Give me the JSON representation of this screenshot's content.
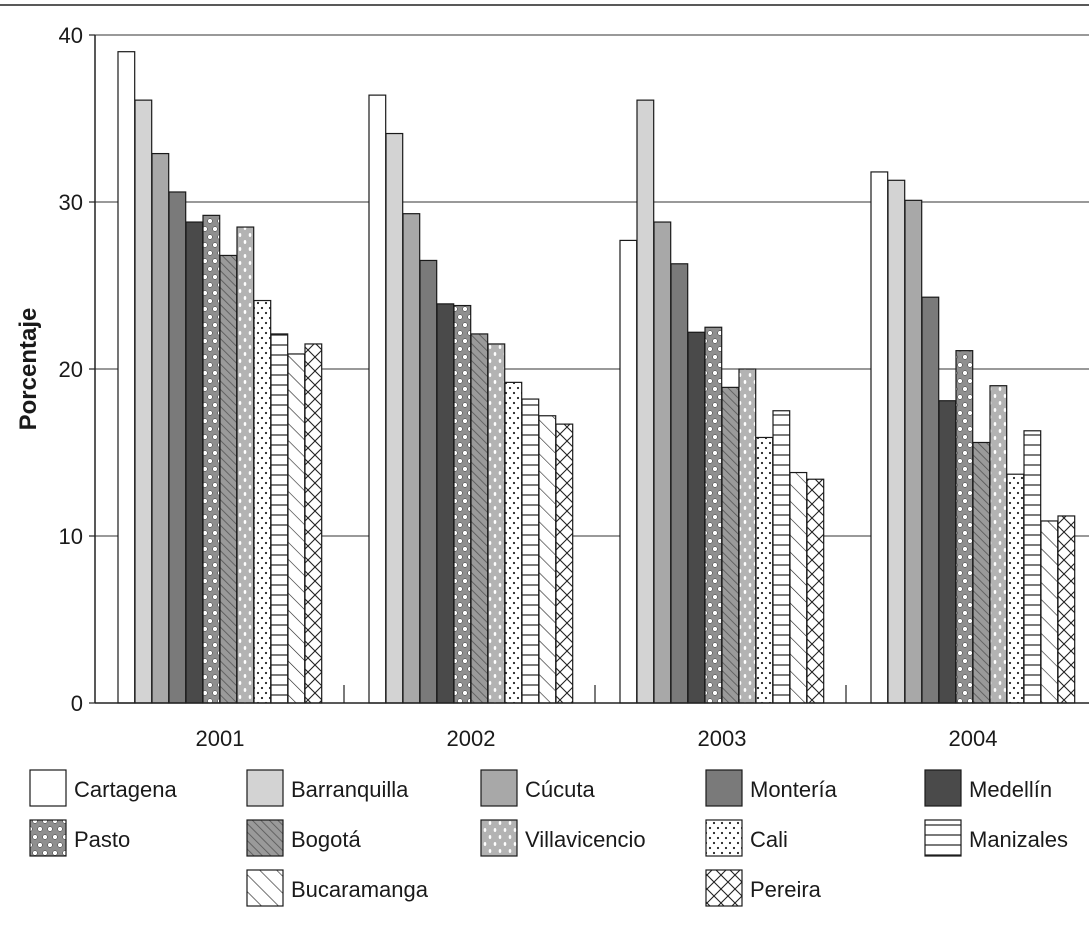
{
  "chart_data": {
    "type": "bar",
    "title": "",
    "xlabel": "",
    "ylabel": "Porcentaje",
    "ylim": [
      0,
      40
    ],
    "yticks": [
      0,
      10,
      20,
      30,
      40
    ],
    "grid": true,
    "legend_position": "bottom",
    "categories": [
      "2001",
      "2002",
      "2003",
      "2004"
    ],
    "series": [
      {
        "name": "Cartagena",
        "pattern": "white",
        "values": [
          39.0,
          36.4,
          27.7,
          31.8
        ]
      },
      {
        "name": "Barranquilla",
        "pattern": "light-gray",
        "values": [
          36.1,
          34.1,
          36.1,
          31.3
        ]
      },
      {
        "name": "Cúcuta",
        "pattern": "gray",
        "values": [
          32.9,
          29.3,
          28.8,
          30.1
        ]
      },
      {
        "name": "Montería",
        "pattern": "dark-gray",
        "values": [
          30.6,
          26.5,
          26.3,
          24.3
        ]
      },
      {
        "name": "Medellín",
        "pattern": "charcoal",
        "values": [
          28.8,
          23.9,
          22.2,
          18.1
        ]
      },
      {
        "name": "Pasto",
        "pattern": "circles",
        "values": [
          29.2,
          23.8,
          22.5,
          21.1
        ]
      },
      {
        "name": "Bogotá",
        "pattern": "hatch",
        "values": [
          26.8,
          22.1,
          18.9,
          15.6
        ]
      },
      {
        "name": "Villavicencio",
        "pattern": "dots-light",
        "values": [
          28.5,
          21.5,
          20.0,
          19.0
        ]
      },
      {
        "name": "Cali",
        "pattern": "dots",
        "values": [
          24.1,
          19.2,
          15.9,
          13.7
        ]
      },
      {
        "name": "Manizales",
        "pattern": "hlines",
        "values": [
          22.1,
          18.2,
          17.5,
          16.3
        ]
      },
      {
        "name": "Bucaramanga",
        "pattern": "diagonal",
        "values": [
          20.9,
          17.2,
          13.8,
          10.9
        ]
      },
      {
        "name": "Pereira",
        "pattern": "crosshatch",
        "values": [
          21.5,
          16.7,
          13.4,
          11.2
        ]
      }
    ]
  }
}
